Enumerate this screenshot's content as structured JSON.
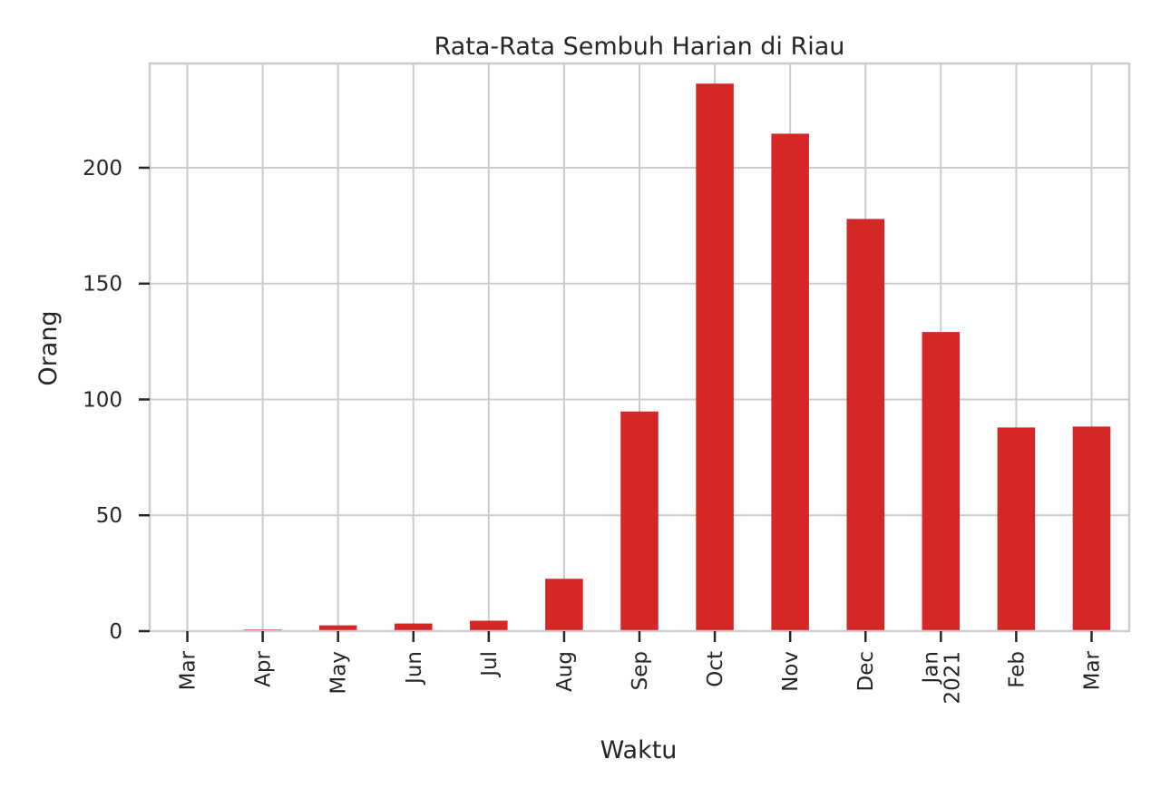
{
  "chart_data": {
    "type": "bar",
    "title": "Rata-Rata Sembuh Harian di Riau",
    "xlabel": "Waktu",
    "ylabel": "Orang",
    "categories": [
      "Mar",
      "Apr",
      "May",
      "Jun",
      "Jul",
      "Aug",
      "Sep",
      "Oct",
      "Nov",
      "Dec",
      "Jan\n2021",
      "Feb",
      "Mar"
    ],
    "values": [
      0.1,
      0.7,
      2.5,
      3.3,
      4.5,
      22.6,
      94.8,
      236.3,
      214.7,
      177.9,
      129.1,
      87.9,
      88.3
    ],
    "ylim": [
      0,
      245
    ],
    "yticks": [
      0,
      50,
      100,
      150,
      200
    ],
    "grid": true,
    "bar_color": "#d62728"
  }
}
